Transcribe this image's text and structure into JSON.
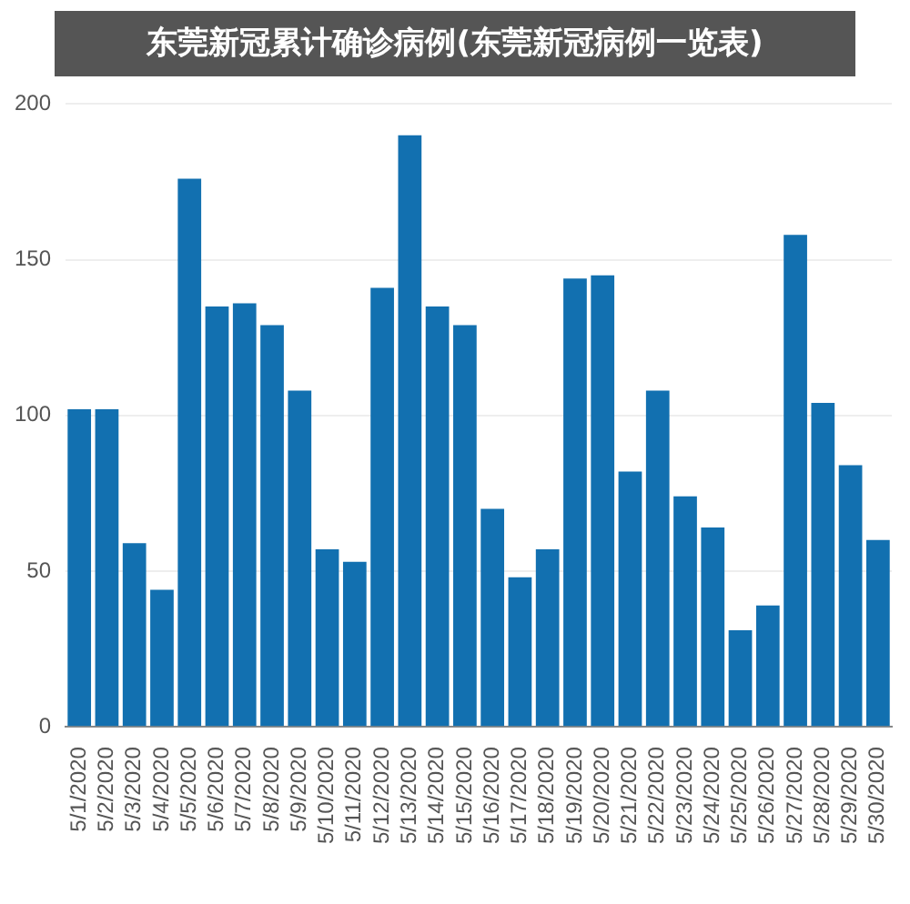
{
  "chart_data": {
    "type": "bar",
    "title": "东莞新冠累计确诊病例(东莞新冠病例一览表)",
    "categories": [
      "5/1/2020",
      "5/2/2020",
      "5/3/2020",
      "5/4/2020",
      "5/5/2020",
      "5/6/2020",
      "5/7/2020",
      "5/8/2020",
      "5/9/2020",
      "5/10/2020",
      "5/11/2020",
      "5/12/2020",
      "5/13/2020",
      "5/14/2020",
      "5/15/2020",
      "5/16/2020",
      "5/17/2020",
      "5/18/2020",
      "5/19/2020",
      "5/20/2020",
      "5/21/2020",
      "5/22/2020",
      "5/23/2020",
      "5/24/2020",
      "5/25/2020",
      "5/26/2020",
      "5/27/2020",
      "5/28/2020",
      "5/29/2020",
      "5/30/2020"
    ],
    "values": [
      102,
      102,
      59,
      44,
      176,
      135,
      136,
      129,
      108,
      57,
      53,
      141,
      190,
      135,
      129,
      70,
      48,
      57,
      144,
      145,
      82,
      108,
      74,
      64,
      31,
      39,
      158,
      104,
      84,
      60
    ],
    "color": "#1270b0",
    "ylim": [
      0,
      200
    ],
    "yticks": [
      0,
      50,
      100,
      150,
      200
    ],
    "grid": "y",
    "legend": false
  }
}
